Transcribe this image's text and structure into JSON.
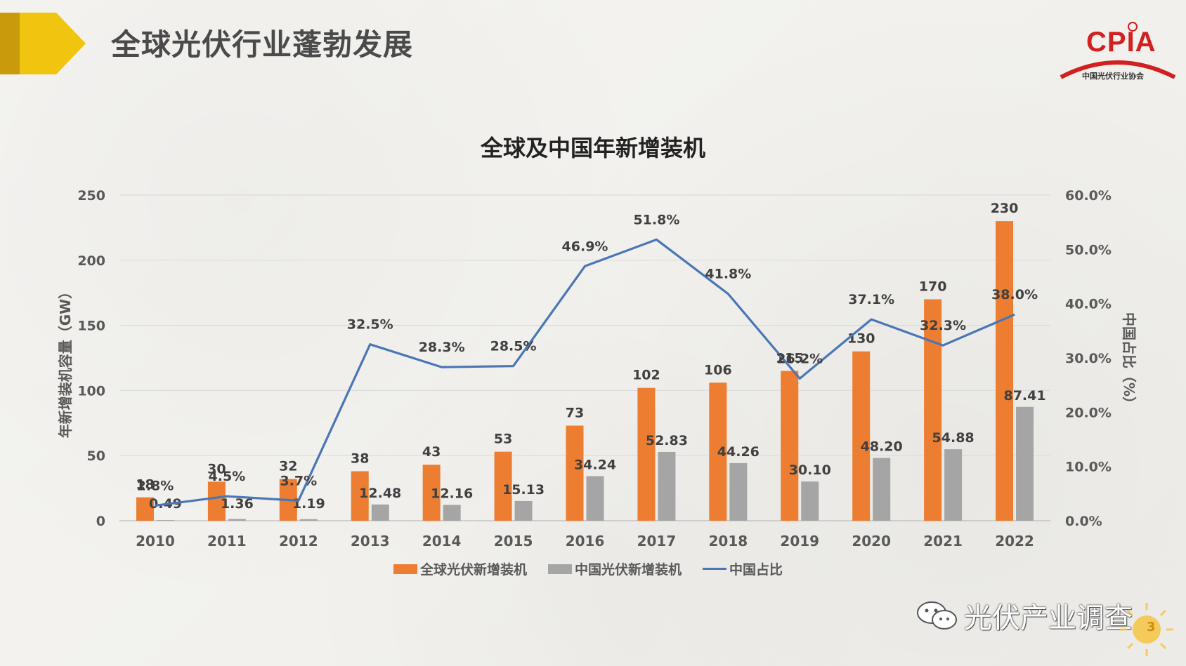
{
  "page_title": "全球光伏行业蓬勃发展",
  "logo": {
    "text": "CPIA",
    "subtitle": "中国光伏行业协会"
  },
  "watermark": {
    "text": "光伏产业调查",
    "icon": "wechat-icon"
  },
  "page_number": "3",
  "colors": {
    "accent_yellow": "#e8b711",
    "global_bar": "#ed7d31",
    "china_bar": "#a5a5a5",
    "share_line": "#4a76b5",
    "logo_red": "#d21f1f"
  },
  "chart_data": {
    "type": "bar",
    "title": "全球及中国年新增装机",
    "categories": [
      "2010",
      "2011",
      "2012",
      "2013",
      "2014",
      "2015",
      "2016",
      "2017",
      "2018",
      "2019",
      "2020",
      "2021",
      "2022"
    ],
    "series": [
      {
        "name": "全球光伏新增装机",
        "type": "bar",
        "axis": "left",
        "color": "#ed7d31",
        "values": [
          18,
          30,
          32,
          38,
          43,
          53,
          73,
          102,
          106,
          115,
          130,
          170,
          230
        ],
        "labels": [
          "18",
          "30",
          "32",
          "38",
          "43",
          "53",
          "73",
          "102",
          "106",
          "115",
          "130",
          "170",
          "230"
        ]
      },
      {
        "name": "中国光伏新增装机",
        "type": "bar",
        "axis": "left",
        "color": "#a5a5a5",
        "values": [
          0.49,
          1.36,
          1.19,
          12.48,
          12.16,
          15.13,
          34.24,
          52.83,
          44.26,
          30.1,
          48.2,
          54.88,
          87.41
        ],
        "labels": [
          "0.49",
          "1.36",
          "1.19",
          "12.48",
          "12.16",
          "15.13",
          "34.24",
          "52.83",
          "44.26",
          "30.10",
          "48.20",
          "54.88",
          "87.41"
        ]
      },
      {
        "name": "中国占比",
        "type": "line",
        "axis": "right",
        "color": "#4a76b5",
        "values": [
          2.8,
          4.5,
          3.7,
          32.5,
          28.3,
          28.5,
          46.9,
          51.8,
          41.8,
          26.2,
          37.1,
          32.3,
          38.0
        ],
        "labels": [
          "2.8%",
          "4.5%",
          "3.7%",
          "32.5%",
          "28.3%",
          "28.5%",
          "46.9%",
          "51.8%",
          "41.8%",
          "26.2%",
          "37.1%",
          "32.3%",
          "38.0%"
        ]
      }
    ],
    "ylabel": "年新增装机容量（GW）",
    "y2label": "中国占比（%）",
    "ylim": [
      0,
      250
    ],
    "yticks": [
      "0",
      "50",
      "100",
      "150",
      "200",
      "250"
    ],
    "y2lim": [
      0,
      60
    ],
    "y2ticks": [
      "0.0%",
      "10.0%",
      "20.0%",
      "30.0%",
      "40.0%",
      "50.0%",
      "60.0%"
    ],
    "grid": true,
    "legend_position": "bottom"
  }
}
